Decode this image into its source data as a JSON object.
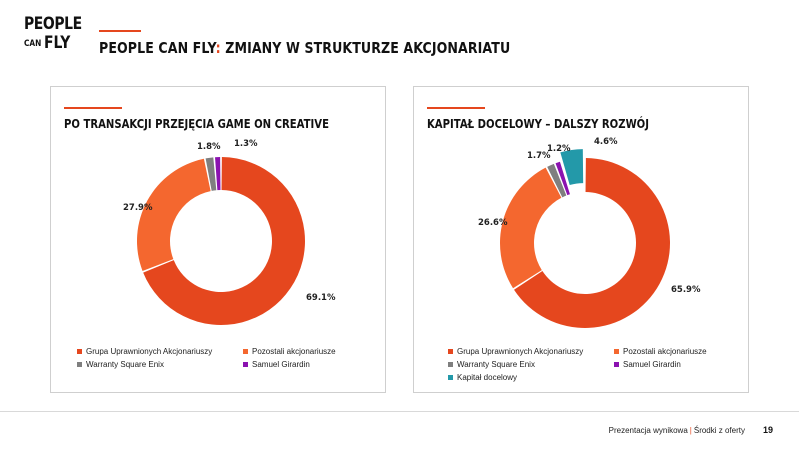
{
  "logo": {
    "line1": "PEOPLE",
    "line2a": "CAN",
    "line2b": "FLY"
  },
  "header": {
    "title_brand": "PEOPLE CAN FLY",
    "title_colon": ":",
    "title_rest": " ZMIANY W STRUKTURZE AKCJONARIATU"
  },
  "colors": {
    "accent": "#e5471e",
    "orange": "#f4672f",
    "gray": "#7f7f7f",
    "purple": "#8b12b0",
    "teal": "#2399a9"
  },
  "chart_data": [
    {
      "type": "pie",
      "title": "PO TRANSAKCJI PRZEJĘCIA GAME ON CREATIVE",
      "categories": [
        "Grupa Uprawnionych Akcjonariuszy",
        "Pozostali akcjonariusze",
        "Warranty Square Enix",
        "Samuel Girardin"
      ],
      "values": [
        69.1,
        27.9,
        1.8,
        1.3
      ],
      "labels": [
        "69.1%",
        "27.9%",
        "1.8%",
        "1.3%"
      ],
      "colors": [
        "#e5471e",
        "#f4672f",
        "#7f7f7f",
        "#8b12b0"
      ],
      "exploded": [],
      "legend": "bottom"
    },
    {
      "type": "pie",
      "title": "KAPITAŁ DOCELOWY – DALSZY ROZWÓJ",
      "categories": [
        "Grupa Uprawnionych Akcjonariuszy",
        "Pozostali akcjonariusze",
        "Warranty Square Enix",
        "Samuel Girardin",
        "Kapitał docelowy"
      ],
      "values": [
        65.9,
        26.6,
        1.7,
        1.2,
        4.6
      ],
      "labels": [
        "65.9%",
        "26.6%",
        "1.7%",
        "1.2%",
        "4.6%"
      ],
      "colors": [
        "#e5471e",
        "#f4672f",
        "#7f7f7f",
        "#8b12b0",
        "#2399a9"
      ],
      "exploded": [
        4
      ],
      "legend": "bottom"
    }
  ],
  "footer": {
    "left": "Prezentacja wynikowa",
    "separator": "|",
    "right": "Środki z oferty",
    "page": "19"
  }
}
